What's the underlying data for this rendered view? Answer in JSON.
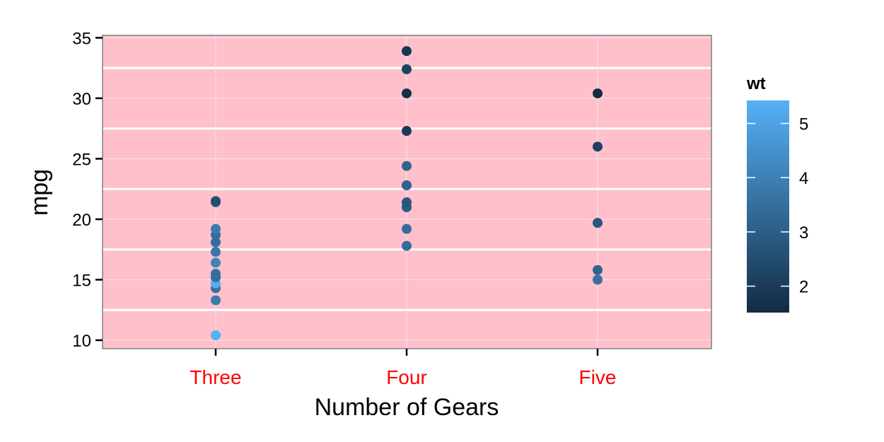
{
  "chart_data": {
    "type": "scatter",
    "xlabel": "Number of Gears",
    "ylabel": "mpg",
    "categories": [
      "Three",
      "Four",
      "Five"
    ],
    "ylim": [
      9.3,
      35.2
    ],
    "yticks": [
      10,
      15,
      20,
      25,
      30,
      35
    ],
    "grid": true,
    "points": [
      {
        "x": "Three",
        "y": 21.4,
        "wt": 3.215
      },
      {
        "x": "Three",
        "y": 18.7,
        "wt": 3.44
      },
      {
        "x": "Three",
        "y": 18.1,
        "wt": 3.46
      },
      {
        "x": "Three",
        "y": 14.3,
        "wt": 3.57
      },
      {
        "x": "Three",
        "y": 16.4,
        "wt": 4.07
      },
      {
        "x": "Three",
        "y": 17.3,
        "wt": 3.73
      },
      {
        "x": "Three",
        "y": 15.2,
        "wt": 3.78
      },
      {
        "x": "Three",
        "y": 10.4,
        "wt": 5.25
      },
      {
        "x": "Three",
        "y": 10.4,
        "wt": 5.424
      },
      {
        "x": "Three",
        "y": 14.7,
        "wt": 5.345
      },
      {
        "x": "Three",
        "y": 21.5,
        "wt": 2.465
      },
      {
        "x": "Three",
        "y": 15.5,
        "wt": 3.52
      },
      {
        "x": "Three",
        "y": 15.2,
        "wt": 3.435
      },
      {
        "x": "Three",
        "y": 13.3,
        "wt": 3.84
      },
      {
        "x": "Three",
        "y": 19.2,
        "wt": 3.845
      },
      {
        "x": "Four",
        "y": 21.0,
        "wt": 2.62
      },
      {
        "x": "Four",
        "y": 21.0,
        "wt": 2.875
      },
      {
        "x": "Four",
        "y": 22.8,
        "wt": 2.32
      },
      {
        "x": "Four",
        "y": 24.4,
        "wt": 3.19
      },
      {
        "x": "Four",
        "y": 22.8,
        "wt": 3.15
      },
      {
        "x": "Four",
        "y": 19.2,
        "wt": 3.44
      },
      {
        "x": "Four",
        "y": 17.8,
        "wt": 3.44
      },
      {
        "x": "Four",
        "y": 32.4,
        "wt": 2.2
      },
      {
        "x": "Four",
        "y": 30.4,
        "wt": 1.615
      },
      {
        "x": "Four",
        "y": 33.9,
        "wt": 1.835
      },
      {
        "x": "Four",
        "y": 27.3,
        "wt": 1.935
      },
      {
        "x": "Four",
        "y": 21.4,
        "wt": 2.78
      },
      {
        "x": "Five",
        "y": 26.0,
        "wt": 2.14
      },
      {
        "x": "Five",
        "y": 30.4,
        "wt": 1.513
      },
      {
        "x": "Five",
        "y": 15.8,
        "wt": 3.17
      },
      {
        "x": "Five",
        "y": 19.7,
        "wt": 2.77
      },
      {
        "x": "Five",
        "y": 15.0,
        "wt": 3.57
      }
    ],
    "legend": {
      "title": "wt",
      "min": 1.513,
      "max": 5.424,
      "ticks": [
        2,
        3,
        4,
        5
      ],
      "low_color": "#132B43",
      "high_color": "#56B1F7",
      "placement": "right"
    }
  },
  "colors": {
    "panel_background": "#FFC0CB",
    "category_label": "#FF0000",
    "grid_major": "#FFFFFF",
    "grid_minor": "#F8E4E8",
    "panel_border": "#7F7F7F"
  }
}
